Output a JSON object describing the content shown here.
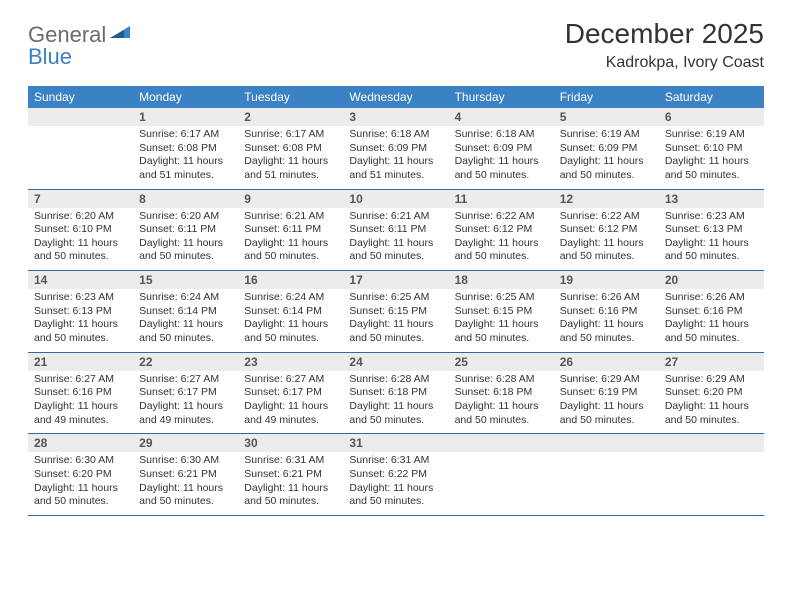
{
  "logo": {
    "text1": "General",
    "text2": "Blue"
  },
  "title": "December 2025",
  "location": "Kadrokpa, Ivory Coast",
  "colors": {
    "header_bg": "#3b82c4",
    "header_text": "#ffffff",
    "daynum_bg": "#ececec",
    "daynum_text": "#555555",
    "row_border": "#2f6aa3",
    "body_text": "#333333",
    "logo_gray": "#6b6b6b",
    "logo_blue": "#3b82c4"
  },
  "days_of_week": [
    "Sunday",
    "Monday",
    "Tuesday",
    "Wednesday",
    "Thursday",
    "Friday",
    "Saturday"
  ],
  "weeks": [
    [
      {
        "blank": true
      },
      {
        "n": "1",
        "sunrise": "6:17 AM",
        "sunset": "6:08 PM",
        "daylight": "11 hours and 51 minutes."
      },
      {
        "n": "2",
        "sunrise": "6:17 AM",
        "sunset": "6:08 PM",
        "daylight": "11 hours and 51 minutes."
      },
      {
        "n": "3",
        "sunrise": "6:18 AM",
        "sunset": "6:09 PM",
        "daylight": "11 hours and 51 minutes."
      },
      {
        "n": "4",
        "sunrise": "6:18 AM",
        "sunset": "6:09 PM",
        "daylight": "11 hours and 50 minutes."
      },
      {
        "n": "5",
        "sunrise": "6:19 AM",
        "sunset": "6:09 PM",
        "daylight": "11 hours and 50 minutes."
      },
      {
        "n": "6",
        "sunrise": "6:19 AM",
        "sunset": "6:10 PM",
        "daylight": "11 hours and 50 minutes."
      }
    ],
    [
      {
        "n": "7",
        "sunrise": "6:20 AM",
        "sunset": "6:10 PM",
        "daylight": "11 hours and 50 minutes."
      },
      {
        "n": "8",
        "sunrise": "6:20 AM",
        "sunset": "6:11 PM",
        "daylight": "11 hours and 50 minutes."
      },
      {
        "n": "9",
        "sunrise": "6:21 AM",
        "sunset": "6:11 PM",
        "daylight": "11 hours and 50 minutes."
      },
      {
        "n": "10",
        "sunrise": "6:21 AM",
        "sunset": "6:11 PM",
        "daylight": "11 hours and 50 minutes."
      },
      {
        "n": "11",
        "sunrise": "6:22 AM",
        "sunset": "6:12 PM",
        "daylight": "11 hours and 50 minutes."
      },
      {
        "n": "12",
        "sunrise": "6:22 AM",
        "sunset": "6:12 PM",
        "daylight": "11 hours and 50 minutes."
      },
      {
        "n": "13",
        "sunrise": "6:23 AM",
        "sunset": "6:13 PM",
        "daylight": "11 hours and 50 minutes."
      }
    ],
    [
      {
        "n": "14",
        "sunrise": "6:23 AM",
        "sunset": "6:13 PM",
        "daylight": "11 hours and 50 minutes."
      },
      {
        "n": "15",
        "sunrise": "6:24 AM",
        "sunset": "6:14 PM",
        "daylight": "11 hours and 50 minutes."
      },
      {
        "n": "16",
        "sunrise": "6:24 AM",
        "sunset": "6:14 PM",
        "daylight": "11 hours and 50 minutes."
      },
      {
        "n": "17",
        "sunrise": "6:25 AM",
        "sunset": "6:15 PM",
        "daylight": "11 hours and 50 minutes."
      },
      {
        "n": "18",
        "sunrise": "6:25 AM",
        "sunset": "6:15 PM",
        "daylight": "11 hours and 50 minutes."
      },
      {
        "n": "19",
        "sunrise": "6:26 AM",
        "sunset": "6:16 PM",
        "daylight": "11 hours and 50 minutes."
      },
      {
        "n": "20",
        "sunrise": "6:26 AM",
        "sunset": "6:16 PM",
        "daylight": "11 hours and 50 minutes."
      }
    ],
    [
      {
        "n": "21",
        "sunrise": "6:27 AM",
        "sunset": "6:16 PM",
        "daylight": "11 hours and 49 minutes."
      },
      {
        "n": "22",
        "sunrise": "6:27 AM",
        "sunset": "6:17 PM",
        "daylight": "11 hours and 49 minutes."
      },
      {
        "n": "23",
        "sunrise": "6:27 AM",
        "sunset": "6:17 PM",
        "daylight": "11 hours and 49 minutes."
      },
      {
        "n": "24",
        "sunrise": "6:28 AM",
        "sunset": "6:18 PM",
        "daylight": "11 hours and 50 minutes."
      },
      {
        "n": "25",
        "sunrise": "6:28 AM",
        "sunset": "6:18 PM",
        "daylight": "11 hours and 50 minutes."
      },
      {
        "n": "26",
        "sunrise": "6:29 AM",
        "sunset": "6:19 PM",
        "daylight": "11 hours and 50 minutes."
      },
      {
        "n": "27",
        "sunrise": "6:29 AM",
        "sunset": "6:20 PM",
        "daylight": "11 hours and 50 minutes."
      }
    ],
    [
      {
        "n": "28",
        "sunrise": "6:30 AM",
        "sunset": "6:20 PM",
        "daylight": "11 hours and 50 minutes."
      },
      {
        "n": "29",
        "sunrise": "6:30 AM",
        "sunset": "6:21 PM",
        "daylight": "11 hours and 50 minutes."
      },
      {
        "n": "30",
        "sunrise": "6:31 AM",
        "sunset": "6:21 PM",
        "daylight": "11 hours and 50 minutes."
      },
      {
        "n": "31",
        "sunrise": "6:31 AM",
        "sunset": "6:22 PM",
        "daylight": "11 hours and 50 minutes."
      },
      {
        "blank": true
      },
      {
        "blank": true
      },
      {
        "blank": true
      }
    ]
  ],
  "labels": {
    "sunrise": "Sunrise:",
    "sunset": "Sunset:",
    "daylight": "Daylight:"
  }
}
